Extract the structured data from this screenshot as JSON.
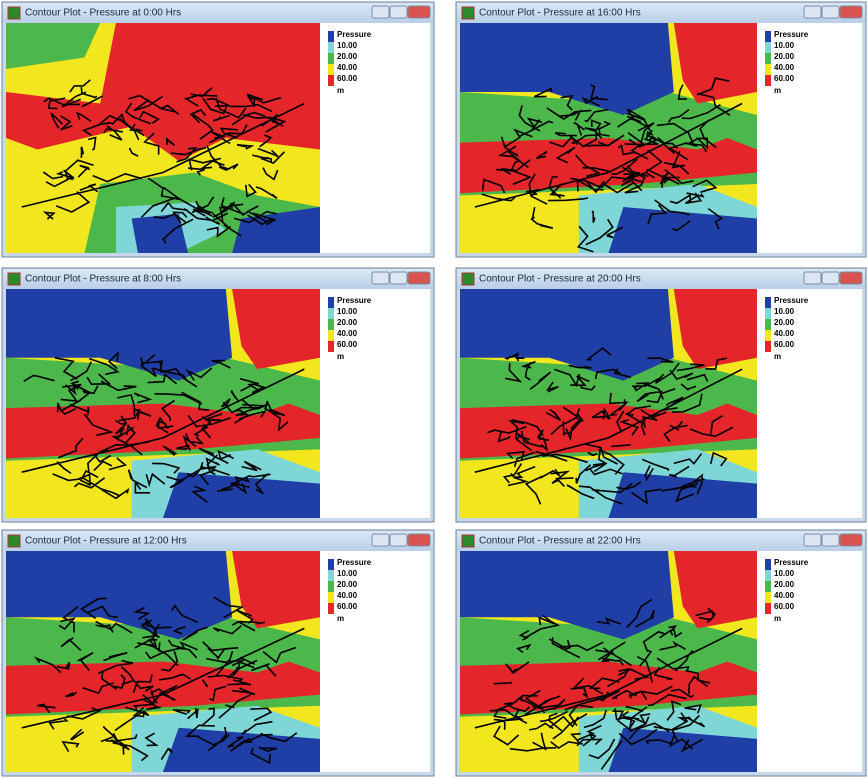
{
  "windows": [
    {
      "title": "Contour Plot - Pressure at 0:00 Hrs"
    },
    {
      "title": "Contour Plot - Pressure at 16:00 Hrs"
    },
    {
      "title": "Contour Plot - Pressure at 8:00 Hrs"
    },
    {
      "title": "Contour Plot - Pressure at 20:00 Hrs"
    },
    {
      "title": "Contour Plot - Pressure at 12:00 Hrs"
    },
    {
      "title": "Contour Plot - Pressure at 22:00 Hrs"
    }
  ],
  "legend": {
    "title": "Pressure",
    "labels": [
      "10.00",
      "20.00",
      "40.00",
      "60.00"
    ],
    "unit": "m"
  }
}
